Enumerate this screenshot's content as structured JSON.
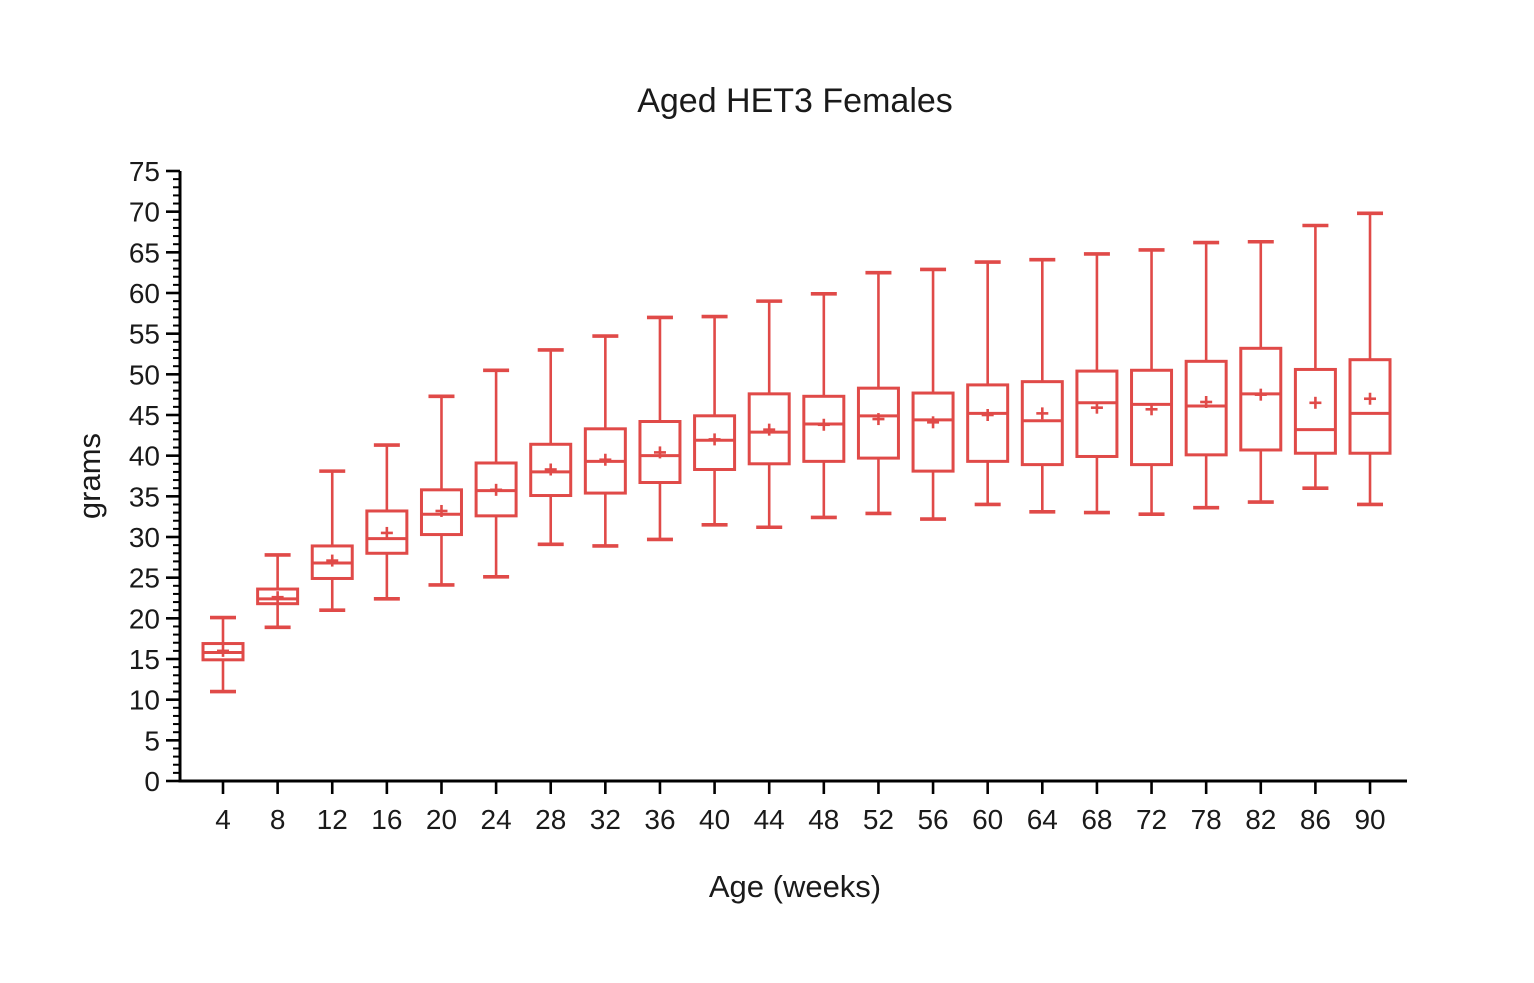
{
  "title": "Aged HET3 Females",
  "chart_data": {
    "type": "box",
    "title": "Aged HET3 Females",
    "xlabel": "Age (weeks)",
    "ylabel": "grams",
    "ylim": [
      0,
      75
    ],
    "y_major_tick": 5,
    "y_minor_tick": 1,
    "y_tick_labels": [
      "0",
      "5",
      "10",
      "15",
      "20",
      "25",
      "30",
      "35",
      "40",
      "45",
      "50",
      "55",
      "60",
      "65",
      "70",
      "75"
    ],
    "grid": false,
    "legend": "none",
    "box_color": "#e04a48",
    "axis_color": "#000000",
    "mean_marker": "plus",
    "categories": [
      4,
      8,
      12,
      16,
      20,
      24,
      28,
      32,
      36,
      40,
      44,
      48,
      52,
      56,
      60,
      64,
      68,
      72,
      78,
      82,
      86,
      90
    ],
    "boxes": [
      {
        "age": 4,
        "min": 11.0,
        "q1": 14.9,
        "median": 15.8,
        "q3": 16.9,
        "max": 20.1,
        "mean": 16.0
      },
      {
        "age": 8,
        "min": 18.9,
        "q1": 21.8,
        "median": 22.4,
        "q3": 23.6,
        "max": 27.8,
        "mean": 22.6
      },
      {
        "age": 12,
        "min": 21.0,
        "q1": 24.9,
        "median": 26.8,
        "q3": 28.9,
        "max": 38.1,
        "mean": 27.1
      },
      {
        "age": 16,
        "min": 22.4,
        "q1": 28.0,
        "median": 29.8,
        "q3": 33.2,
        "max": 41.3,
        "mean": 30.5
      },
      {
        "age": 20,
        "min": 24.1,
        "q1": 30.3,
        "median": 32.8,
        "q3": 35.8,
        "max": 47.3,
        "mean": 33.2
      },
      {
        "age": 24,
        "min": 25.1,
        "q1": 32.6,
        "median": 35.7,
        "q3": 39.1,
        "max": 50.5,
        "mean": 35.8
      },
      {
        "age": 28,
        "min": 29.1,
        "q1": 35.1,
        "median": 38.0,
        "q3": 41.4,
        "max": 53.0,
        "mean": 38.3
      },
      {
        "age": 32,
        "min": 28.9,
        "q1": 35.4,
        "median": 39.3,
        "q3": 43.3,
        "max": 54.7,
        "mean": 39.5
      },
      {
        "age": 36,
        "min": 29.7,
        "q1": 36.7,
        "median": 40.0,
        "q3": 44.2,
        "max": 57.0,
        "mean": 40.4
      },
      {
        "age": 40,
        "min": 31.5,
        "q1": 38.3,
        "median": 41.9,
        "q3": 44.9,
        "max": 57.1,
        "mean": 42.0
      },
      {
        "age": 44,
        "min": 31.2,
        "q1": 39.0,
        "median": 42.9,
        "q3": 47.6,
        "max": 59.0,
        "mean": 43.2
      },
      {
        "age": 48,
        "min": 32.4,
        "q1": 39.3,
        "median": 43.9,
        "q3": 47.3,
        "max": 59.9,
        "mean": 43.8
      },
      {
        "age": 52,
        "min": 32.9,
        "q1": 39.7,
        "median": 44.9,
        "q3": 48.3,
        "max": 62.5,
        "mean": 44.5
      },
      {
        "age": 56,
        "min": 32.2,
        "q1": 38.1,
        "median": 44.4,
        "q3": 47.7,
        "max": 62.9,
        "mean": 44.1
      },
      {
        "age": 60,
        "min": 34.0,
        "q1": 39.3,
        "median": 45.2,
        "q3": 48.7,
        "max": 63.8,
        "mean": 45.0
      },
      {
        "age": 64,
        "min": 33.1,
        "q1": 38.9,
        "median": 44.3,
        "q3": 49.1,
        "max": 64.1,
        "mean": 45.2
      },
      {
        "age": 68,
        "min": 33.0,
        "q1": 39.9,
        "median": 46.5,
        "q3": 50.4,
        "max": 64.8,
        "mean": 45.9
      },
      {
        "age": 72,
        "min": 32.8,
        "q1": 38.9,
        "median": 46.3,
        "q3": 50.5,
        "max": 65.3,
        "mean": 45.7
      },
      {
        "age": 78,
        "min": 33.6,
        "q1": 40.1,
        "median": 46.1,
        "q3": 51.6,
        "max": 66.2,
        "mean": 46.6
      },
      {
        "age": 82,
        "min": 34.3,
        "q1": 40.7,
        "median": 47.6,
        "q3": 53.2,
        "max": 66.3,
        "mean": 47.5
      },
      {
        "age": 86,
        "min": 36.0,
        "q1": 40.3,
        "median": 43.2,
        "q3": 50.6,
        "max": 68.3,
        "mean": 46.5
      },
      {
        "age": 90,
        "min": 34.0,
        "q1": 40.3,
        "median": 45.2,
        "q3": 51.8,
        "max": 69.8,
        "mean": 47.0
      }
    ]
  }
}
